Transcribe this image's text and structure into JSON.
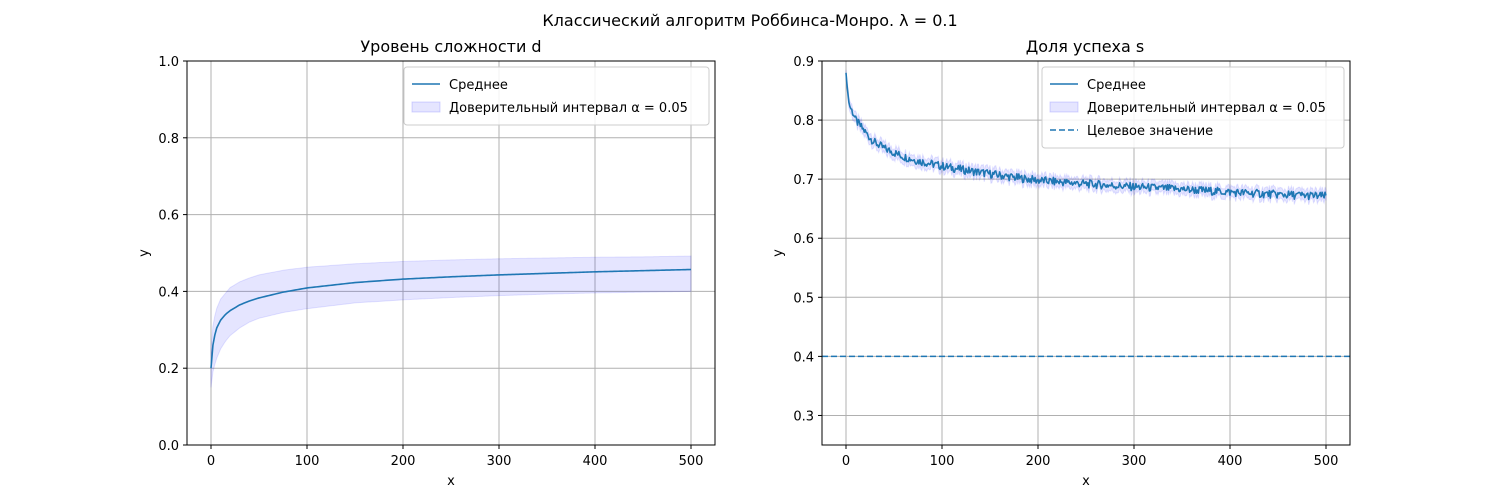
{
  "figure": {
    "suptitle": "Классический алгоритм Роббинса-Монро. λ = 0.1"
  },
  "chart_data": [
    {
      "type": "line",
      "title": "Уровень сложности d",
      "xlabel": "x",
      "ylabel": "y",
      "xlim": [
        -25,
        525
      ],
      "ylim": [
        0.0,
        1.0
      ],
      "xticks": [
        0,
        100,
        200,
        300,
        400,
        500
      ],
      "yticks": [
        0.0,
        0.2,
        0.4,
        0.6,
        0.8,
        1.0
      ],
      "ytick_labels": [
        "0.0",
        "0.2",
        "0.4",
        "0.6",
        "0.8",
        "1.0"
      ],
      "grid": true,
      "legend": {
        "placement": "upper right",
        "entries": [
          {
            "label": "Среднее",
            "kind": "line",
            "color": "#1f77b4"
          },
          {
            "label": "Доверительный интервал α = 0.05",
            "kind": "band",
            "color": "#0000ff"
          }
        ]
      },
      "series": [
        {
          "name": "Среднее",
          "color": "#1f77b4",
          "x": [
            0,
            2,
            5,
            10,
            15,
            20,
            30,
            40,
            50,
            75,
            100,
            150,
            200,
            250,
            300,
            350,
            400,
            450,
            500
          ],
          "y": [
            0.2,
            0.26,
            0.3,
            0.325,
            0.34,
            0.35,
            0.365,
            0.375,
            0.383,
            0.398,
            0.409,
            0.423,
            0.432,
            0.438,
            0.443,
            0.447,
            0.451,
            0.454,
            0.457
          ]
        }
      ],
      "band": {
        "name": "Доверительный интервал α = 0.05",
        "color": "#0000ff",
        "x": [
          0,
          2,
          5,
          10,
          15,
          20,
          30,
          40,
          50,
          75,
          100,
          150,
          200,
          250,
          300,
          350,
          400,
          450,
          500
        ],
        "lower": [
          0.15,
          0.19,
          0.22,
          0.25,
          0.27,
          0.285,
          0.305,
          0.32,
          0.33,
          0.345,
          0.355,
          0.37,
          0.378,
          0.384,
          0.389,
          0.393,
          0.396,
          0.398,
          0.4
        ],
        "upper": [
          0.25,
          0.31,
          0.35,
          0.38,
          0.395,
          0.41,
          0.425,
          0.435,
          0.443,
          0.455,
          0.463,
          0.472,
          0.478,
          0.482,
          0.485,
          0.487,
          0.489,
          0.49,
          0.492
        ]
      }
    },
    {
      "type": "line",
      "title": "Доля успеха s",
      "xlabel": "x",
      "ylabel": "y",
      "xlim": [
        -25,
        525
      ],
      "ylim": [
        0.25,
        0.9
      ],
      "xticks": [
        0,
        100,
        200,
        300,
        400,
        500
      ],
      "yticks": [
        0.3,
        0.4,
        0.5,
        0.6,
        0.7,
        0.8,
        0.9
      ],
      "ytick_labels": [
        "0.3",
        "0.4",
        "0.5",
        "0.6",
        "0.7",
        "0.8",
        "0.9"
      ],
      "grid": true,
      "legend": {
        "placement": "upper right",
        "entries": [
          {
            "label": "Среднее",
            "kind": "line",
            "color": "#1f77b4"
          },
          {
            "label": "Доверительный интервал α = 0.05",
            "kind": "band",
            "color": "#0000ff"
          },
          {
            "label": "Целевое значение",
            "kind": "dashed",
            "color": "#1f77b4"
          }
        ]
      },
      "series": [
        {
          "name": "Среднее",
          "color": "#1f77b4",
          "x": [
            0,
            1,
            2,
            3,
            5,
            8,
            10,
            15,
            20,
            25,
            30,
            40,
            50,
            60,
            75,
            100,
            125,
            150,
            175,
            200,
            250,
            300,
            350,
            400,
            450,
            500
          ],
          "y": [
            0.88,
            0.86,
            0.845,
            0.83,
            0.82,
            0.81,
            0.8,
            0.79,
            0.78,
            0.77,
            0.762,
            0.752,
            0.745,
            0.738,
            0.731,
            0.722,
            0.715,
            0.709,
            0.703,
            0.698,
            0.692,
            0.687,
            0.683,
            0.678,
            0.674,
            0.671
          ]
        }
      ],
      "band": {
        "name": "Доверительный интервал α = 0.05",
        "color": "#0000ff",
        "x": [
          0,
          1,
          2,
          3,
          5,
          8,
          10,
          15,
          20,
          25,
          30,
          40,
          50,
          60,
          75,
          100,
          125,
          150,
          175,
          200,
          250,
          300,
          350,
          400,
          450,
          500
        ],
        "lower": [
          0.875,
          0.852,
          0.836,
          0.821,
          0.811,
          0.801,
          0.791,
          0.781,
          0.771,
          0.761,
          0.753,
          0.743,
          0.736,
          0.729,
          0.722,
          0.713,
          0.706,
          0.7,
          0.694,
          0.689,
          0.683,
          0.678,
          0.674,
          0.669,
          0.665,
          0.662
        ],
        "upper": [
          0.885,
          0.868,
          0.854,
          0.839,
          0.829,
          0.819,
          0.809,
          0.799,
          0.789,
          0.779,
          0.771,
          0.761,
          0.754,
          0.747,
          0.74,
          0.731,
          0.724,
          0.718,
          0.712,
          0.707,
          0.701,
          0.696,
          0.692,
          0.687,
          0.683,
          0.68
        ]
      },
      "hlines": [
        {
          "name": "Целевое значение",
          "y": 0.4,
          "style": "dashed",
          "color": "#1f77b4"
        }
      ]
    }
  ]
}
